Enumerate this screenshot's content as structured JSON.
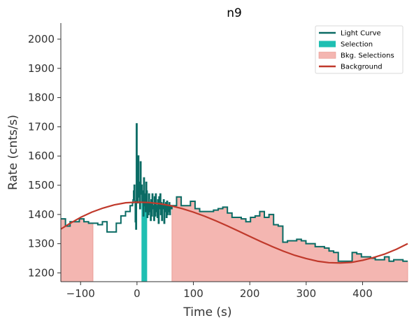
{
  "chart_data": {
    "type": "line",
    "title": "n9",
    "xlabel": "Time (s)",
    "ylabel": "Rate (cnts/s)",
    "xlim": [
      -135,
      480
    ],
    "ylim": [
      1170,
      2055
    ],
    "xticks": [
      -100,
      0,
      100,
      200,
      300,
      400
    ],
    "yticks": [
      1200,
      1300,
      1400,
      1500,
      1600,
      1700,
      1800,
      1900,
      2000
    ],
    "legend_position": "top-right",
    "grid": false,
    "colors": {
      "light_curve": "#0a6b64",
      "selection": "#1fbfb2",
      "bkg_selection": "#f4b6b1",
      "bkg_selection_edge": "#e8948d",
      "background": "#c0392b",
      "axis": "#333333"
    },
    "legend": [
      {
        "label": "Light Curve",
        "kind": "line",
        "color": "#0a6b64"
      },
      {
        "label": "Selection",
        "kind": "patch",
        "color": "#1fbfb2"
      },
      {
        "label": "Bkg. Selections",
        "kind": "patch",
        "color": "#f4b6b1"
      },
      {
        "label": "Background",
        "kind": "line",
        "color": "#c0392b"
      }
    ],
    "selection": {
      "range": [
        8,
        18
      ]
    },
    "bkg_selections": [
      {
        "range": [
          -135,
          -78
        ]
      },
      {
        "range": [
          62,
          480
        ]
      }
    ],
    "light_curve_coarse": {
      "step": 8.192,
      "start": -135,
      "end": -8,
      "values": [
        1385,
        1360,
        1375,
        1375,
        1385,
        1375,
        1370,
        1370,
        1365,
        1375,
        1340,
        1340,
        1370,
        1395,
        1410,
        1430,
        1430,
        1445,
        1440,
        1440,
        1420,
        1420
      ]
    },
    "light_curve_fine": {
      "start": -8,
      "end": 62,
      "values": [
        1440,
        1450,
        1480,
        1500,
        1445,
        1375,
        1350,
        1710,
        1490,
        1440,
        1600,
        1460,
        1510,
        1420,
        1580,
        1470,
        1500,
        1445,
        1480,
        1395,
        1525,
        1430,
        1470,
        1410,
        1510,
        1480,
        1390,
        1440,
        1400,
        1470,
        1440,
        1410,
        1380,
        1450,
        1395,
        1470,
        1420,
        1430,
        1380,
        1460,
        1395,
        1470,
        1410,
        1430,
        1390,
        1450,
        1370,
        1460,
        1420,
        1470,
        1400,
        1440,
        1380,
        1430,
        1420,
        1450,
        1370,
        1430,
        1410,
        1440,
        1390,
        1445,
        1400,
        1430,
        1410,
        1440,
        1400,
        1420,
        1430,
        1420
      ]
    },
    "light_curve_tail": {
      "step": 8.192,
      "start": 62,
      "end": 480,
      "values": [
        1430,
        1460,
        1430,
        1430,
        1445,
        1420,
        1410,
        1410,
        1410,
        1415,
        1420,
        1425,
        1405,
        1390,
        1390,
        1385,
        1375,
        1390,
        1395,
        1410,
        1390,
        1400,
        1365,
        1360,
        1305,
        1310,
        1310,
        1315,
        1310,
        1300,
        1300,
        1290,
        1290,
        1285,
        1275,
        1270,
        1240,
        1240,
        1240,
        1270,
        1265,
        1255,
        1255,
        1250,
        1245,
        1245,
        1255,
        1240,
        1245,
        1245,
        1240,
        1240,
        1260,
        1260,
        1255,
        1240,
        1240,
        1245,
        1240,
        1250,
        1255,
        1270,
        1255,
        1265,
        1280,
        1275,
        1285,
        1290,
        1270,
        1280,
        1290,
        1280,
        1260,
        1245
      ]
    },
    "background_model": {
      "x": [
        -135,
        -120,
        -100,
        -80,
        -60,
        -40,
        -20,
        0,
        20,
        40,
        60,
        80,
        100,
        120,
        140,
        160,
        180,
        200,
        220,
        240,
        260,
        280,
        300,
        320,
        340,
        360,
        380,
        400,
        420,
        440,
        460,
        480
      ],
      "y": [
        1350,
        1368,
        1390,
        1408,
        1422,
        1433,
        1440,
        1442,
        1441,
        1437,
        1430,
        1420,
        1408,
        1394,
        1378,
        1361,
        1343,
        1325,
        1307,
        1290,
        1274,
        1260,
        1249,
        1240,
        1235,
        1234,
        1236,
        1243,
        1253,
        1265,
        1281,
        1300
      ]
    }
  }
}
